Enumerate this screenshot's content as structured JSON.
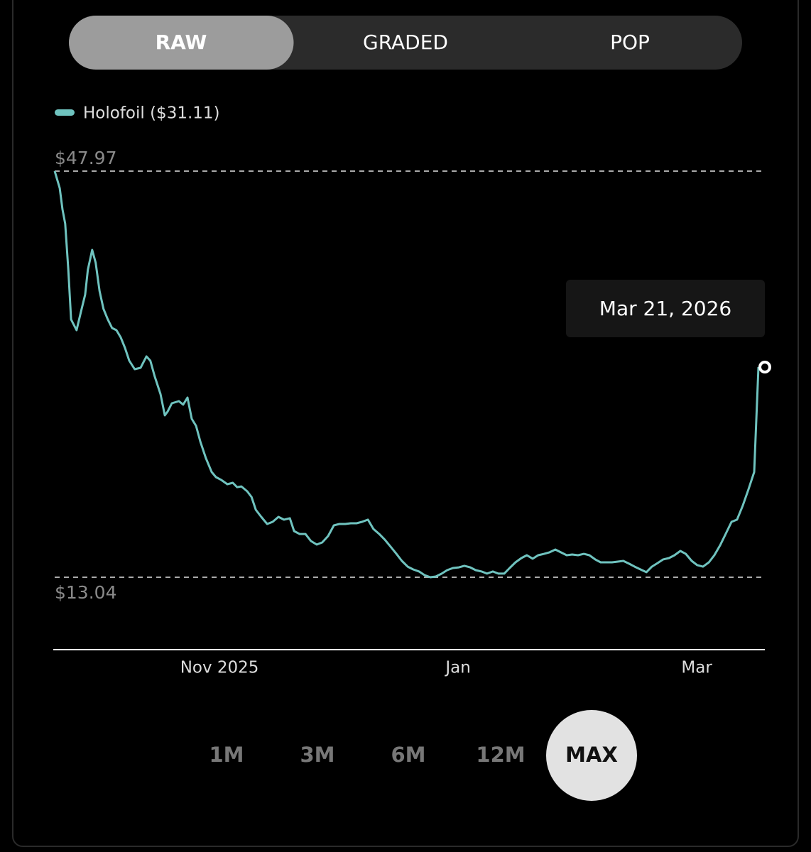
{
  "tabs": [
    {
      "label": "RAW",
      "active": true
    },
    {
      "label": "GRADED",
      "active": false
    },
    {
      "label": "POP",
      "active": false
    }
  ],
  "chart_data": {
    "type": "line",
    "series": [
      {
        "name": "Holofoil ($31.11)",
        "color": "#6fc3bf",
        "values": [
          47.97,
          46.5,
          44.67,
          43.45,
          39.48,
          35.21,
          34.29,
          35.82,
          37.34,
          39.48,
          41.19,
          40.09,
          37.65,
          36.12,
          35.21,
          34.47,
          34.29,
          33.68,
          32.76,
          31.66,
          30.93,
          31.05,
          32.03,
          31.66,
          30.32,
          28.79,
          26.96,
          27.27,
          28.0,
          28.18,
          27.88,
          28.49,
          26.66,
          26.05,
          24.7,
          23.3,
          22.08,
          21.65,
          21.4,
          21.04,
          21.16,
          20.79,
          20.85,
          20.43,
          19.94,
          18.84,
          18.23,
          17.62,
          17.8,
          18.23,
          17.99,
          18.11,
          17.01,
          16.76,
          16.76,
          16.15,
          15.85,
          16.03,
          16.58,
          17.5,
          17.62,
          17.62,
          17.68,
          17.68,
          17.8,
          17.99,
          17.19,
          16.76,
          16.28,
          15.67,
          15.05,
          14.44,
          13.95,
          13.71,
          13.53,
          13.22,
          13.04,
          13.1,
          13.35,
          13.65,
          13.83,
          13.89,
          14.02,
          13.89,
          13.65,
          13.53,
          13.35,
          13.53,
          13.35,
          13.35,
          13.83,
          14.32,
          14.69,
          14.93,
          14.63,
          14.93,
          15.05,
          15.18,
          15.42,
          15.18,
          14.93,
          14.99,
          14.93,
          15.05,
          14.93,
          14.57,
          14.32,
          14.32,
          14.32,
          14.38,
          14.44,
          14.2,
          13.95,
          13.71,
          13.47,
          13.95,
          14.26,
          14.57,
          14.69,
          14.93,
          15.3,
          15.05,
          14.44,
          14.08,
          13.95,
          14.32,
          14.93,
          15.79,
          16.76,
          17.8,
          17.99,
          19.21,
          20.55,
          22.08,
          31.11
        ]
      }
    ],
    "x": [
      0,
      1.3,
      2,
      2.7,
      3.5,
      4.2,
      5.6,
      6.7,
      7.8,
      8.5,
      9.6,
      10.5,
      11.5,
      12.5,
      13.6,
      14.7,
      15.8,
      16.9,
      18,
      19.1,
      20.5,
      22,
      23.5,
      24.5,
      25.6,
      27.1,
      28.2,
      28.9,
      30,
      31.8,
      32.9,
      34,
      35.1,
      36.2,
      37.3,
      38.7,
      40.2,
      41.3,
      42.7,
      44.2,
      45.6,
      46.7,
      47.8,
      49.3,
      50.4,
      51.5,
      52.9,
      54.4,
      55.8,
      57.3,
      58.7,
      60.2,
      61.3,
      62.7,
      64.2,
      65.6,
      67.1,
      68.5,
      70,
      71.5,
      72.9,
      74.4,
      75.8,
      77.3,
      78.7,
      80.2,
      81.6,
      83.1,
      84.5,
      86,
      87.5,
      88.9,
      90.4,
      91.8,
      93.3,
      94.7,
      96.2,
      97.6,
      99.1,
      100.5,
      102,
      103.5,
      104.9,
      106.4,
      107.8,
      109.3,
      110.7,
      112.2,
      113.6,
      115.1,
      116.5,
      118,
      119.5,
      120.9,
      122.4,
      123.8,
      125.3,
      126.7,
      128.2,
      129.6,
      131.1,
      132.5,
      134,
      135.5,
      136.9,
      138.4,
      139.8,
      141.3,
      142.7,
      144.2,
      145.6,
      147.1,
      148.5,
      150,
      151.5,
      152.9,
      154.4,
      155.8,
      157.3,
      158.7,
      160.2,
      161.6,
      163.1,
      164.5,
      166,
      167.5,
      168.9,
      170.4,
      171.8,
      173.3,
      174.7,
      176.2,
      177.6,
      179.1,
      180.2
    ],
    "xlim": [
      0,
      180.2
    ],
    "xticks": [
      {
        "value": 42.2,
        "label": "Nov 2025"
      },
      {
        "value": 103.3,
        "label": "Jan"
      },
      {
        "value": 164.4,
        "label": "Mar"
      }
    ],
    "ylim": [
      6.81,
      50.47
    ],
    "yticks": [
      {
        "value": 13.04,
        "label": "$13.04"
      },
      {
        "value": 47.97,
        "label": "$47.97"
      }
    ],
    "tooltip": "Mar 21, 2026"
  },
  "ranges": [
    {
      "label": "1M",
      "active": false
    },
    {
      "label": "3M",
      "active": false
    },
    {
      "label": "6M",
      "active": false
    },
    {
      "label": "12M",
      "active": false
    },
    {
      "label": "MAX",
      "active": true
    }
  ]
}
